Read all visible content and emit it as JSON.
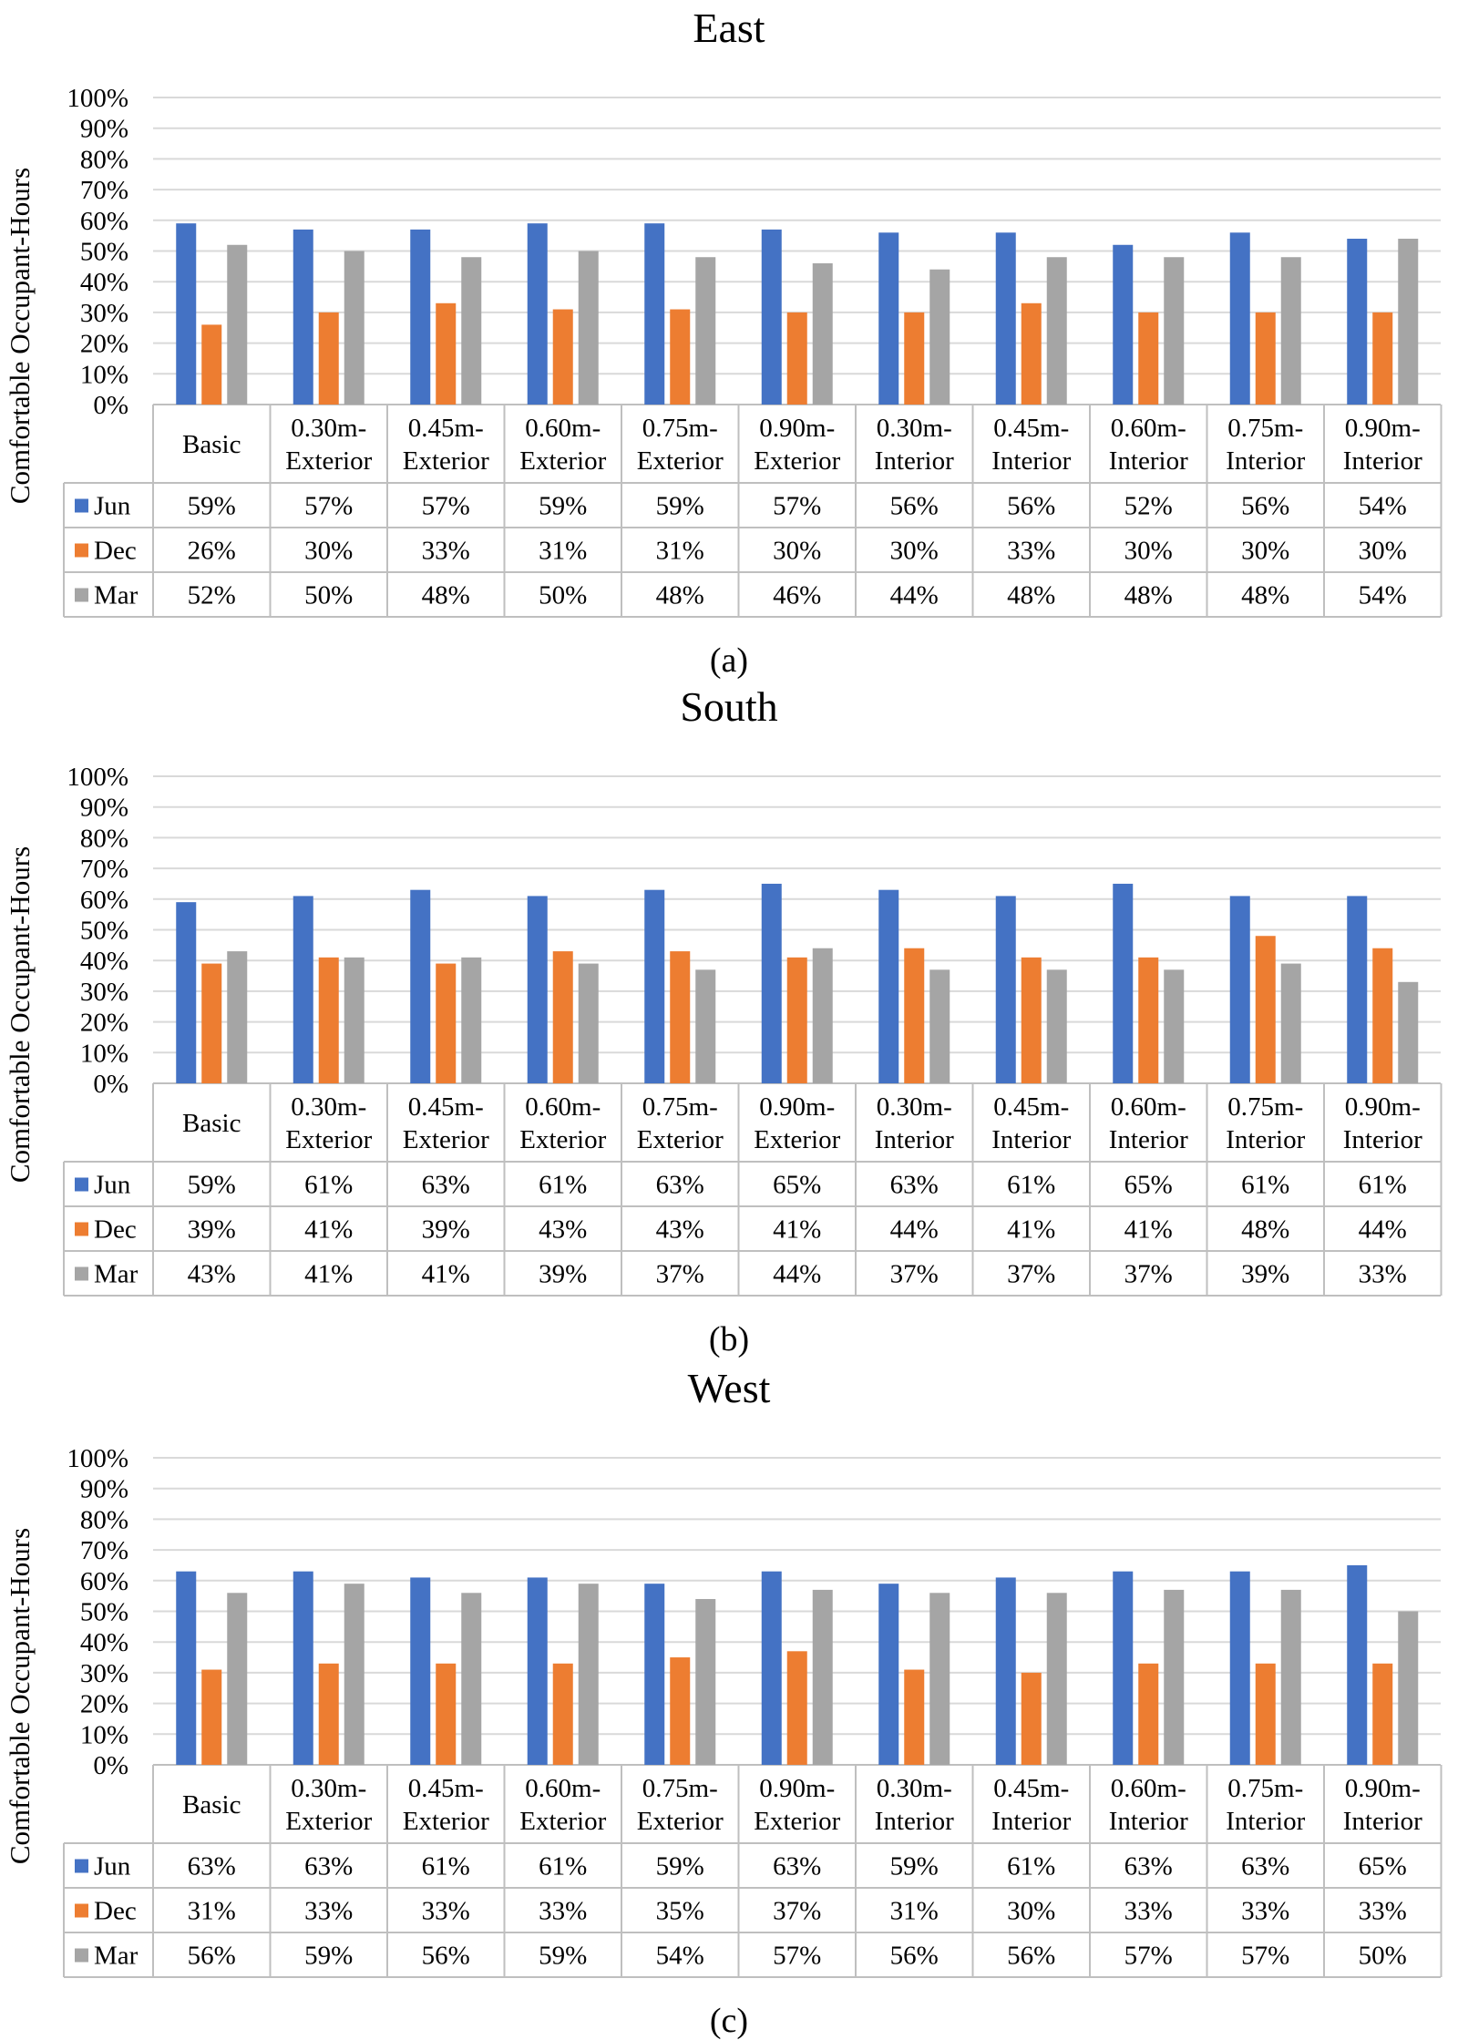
{
  "y_axis_label": "Comfortable Occupant-Hours",
  "y_ticks": [
    "0%",
    "10%",
    "20%",
    "30%",
    "40%",
    "50%",
    "60%",
    "70%",
    "80%",
    "90%",
    "100%"
  ],
  "category_lines": [
    [
      "Basic"
    ],
    [
      "0.30m-",
      "Exterior"
    ],
    [
      "0.45m-",
      "Exterior"
    ],
    [
      "0.60m-",
      "Exterior"
    ],
    [
      "0.75m-",
      "Exterior"
    ],
    [
      "0.90m-",
      "Exterior"
    ],
    [
      "0.30m-",
      "Interior"
    ],
    [
      "0.45m-",
      "Interior"
    ],
    [
      "0.60m-",
      "Interior"
    ],
    [
      "0.75m-",
      "Interior"
    ],
    [
      "0.90m-",
      "Interior"
    ]
  ],
  "colors": {
    "Jun": "#4472C4",
    "Dec": "#ED7D31",
    "Mar": "#A5A5A5"
  },
  "chart_data": [
    {
      "type": "bar",
      "title": "East",
      "caption": "(a)",
      "ylabel": "Comfortable Occupant-Hours",
      "ylim": [
        0,
        100
      ],
      "categories": [
        "Basic",
        "0.30m-Exterior",
        "0.45m-Exterior",
        "0.60m-Exterior",
        "0.75m-Exterior",
        "0.90m-Exterior",
        "0.30m-Interior",
        "0.45m-Interior",
        "0.60m-Interior",
        "0.75m-Interior",
        "0.90m-Interior"
      ],
      "series": [
        {
          "name": "Jun",
          "values": [
            59,
            57,
            57,
            59,
            59,
            57,
            56,
            56,
            52,
            56,
            54
          ],
          "labels": [
            "59%",
            "57%",
            "57%",
            "59%",
            "59%",
            "57%",
            "56%",
            "56%",
            "52%",
            "56%",
            "54%"
          ]
        },
        {
          "name": "Dec",
          "values": [
            26,
            30,
            33,
            31,
            31,
            30,
            30,
            33,
            30,
            30,
            30
          ],
          "labels": [
            "26%",
            "30%",
            "33%",
            "31%",
            "31%",
            "30%",
            "30%",
            "33%",
            "30%",
            "30%",
            "30%"
          ]
        },
        {
          "name": "Mar",
          "values": [
            52,
            50,
            48,
            50,
            48,
            46,
            44,
            48,
            48,
            48,
            54
          ],
          "labels": [
            "52%",
            "50%",
            "48%",
            "50%",
            "48%",
            "46%",
            "44%",
            "48%",
            "48%",
            "48%",
            "54%"
          ]
        }
      ]
    },
    {
      "type": "bar",
      "title": "South",
      "caption": "(b)",
      "ylabel": "Comfortable Occupant-Hours",
      "ylim": [
        0,
        100
      ],
      "categories": [
        "Basic",
        "0.30m-Exterior",
        "0.45m-Exterior",
        "0.60m-Exterior",
        "0.75m-Exterior",
        "0.90m-Exterior",
        "0.30m-Interior",
        "0.45m-Interior",
        "0.60m-Interior",
        "0.75m-Interior",
        "0.90m-Interior"
      ],
      "series": [
        {
          "name": "Jun",
          "values": [
            59,
            61,
            63,
            61,
            63,
            65,
            63,
            61,
            65,
            61,
            61
          ],
          "labels": [
            "59%",
            "61%",
            "63%",
            "61%",
            "63%",
            "65%",
            "63%",
            "61%",
            "65%",
            "61%",
            "61%"
          ]
        },
        {
          "name": "Dec",
          "values": [
            39,
            41,
            39,
            43,
            43,
            41,
            44,
            41,
            41,
            48,
            44
          ],
          "labels": [
            "39%",
            "41%",
            "39%",
            "43%",
            "43%",
            "41%",
            "44%",
            "41%",
            "41%",
            "48%",
            "44%"
          ]
        },
        {
          "name": "Mar",
          "values": [
            43,
            41,
            41,
            39,
            37,
            44,
            37,
            37,
            37,
            39,
            33
          ],
          "labels": [
            "43%",
            "41%",
            "41%",
            "39%",
            "37%",
            "44%",
            "37%",
            "37%",
            "37%",
            "39%",
            "33%"
          ]
        }
      ]
    },
    {
      "type": "bar",
      "title": "West",
      "caption": "(c)",
      "ylabel": "Comfortable Occupant-Hours",
      "ylim": [
        0,
        100
      ],
      "categories": [
        "Basic",
        "0.30m-Exterior",
        "0.45m-Exterior",
        "0.60m-Exterior",
        "0.75m-Exterior",
        "0.90m-Exterior",
        "0.30m-Interior",
        "0.45m-Interior",
        "0.60m-Interior",
        "0.75m-Interior",
        "0.90m-Interior"
      ],
      "series": [
        {
          "name": "Jun",
          "values": [
            63,
            63,
            61,
            61,
            59,
            63,
            59,
            61,
            63,
            63,
            65
          ],
          "labels": [
            "63%",
            "63%",
            "61%",
            "61%",
            "59%",
            "63%",
            "59%",
            "61%",
            "63%",
            "63%",
            "65%"
          ]
        },
        {
          "name": "Dec",
          "values": [
            31,
            33,
            33,
            33,
            35,
            37,
            31,
            30,
            33,
            33,
            33
          ],
          "labels": [
            "31%",
            "33%",
            "33%",
            "33%",
            "35%",
            "37%",
            "31%",
            "30%",
            "33%",
            "33%",
            "33%"
          ]
        },
        {
          "name": "Mar",
          "values": [
            56,
            59,
            56,
            59,
            54,
            57,
            56,
            56,
            57,
            57,
            50
          ],
          "labels": [
            "56%",
            "59%",
            "56%",
            "59%",
            "54%",
            "57%",
            "56%",
            "56%",
            "57%",
            "57%",
            "50%"
          ]
        }
      ]
    }
  ]
}
